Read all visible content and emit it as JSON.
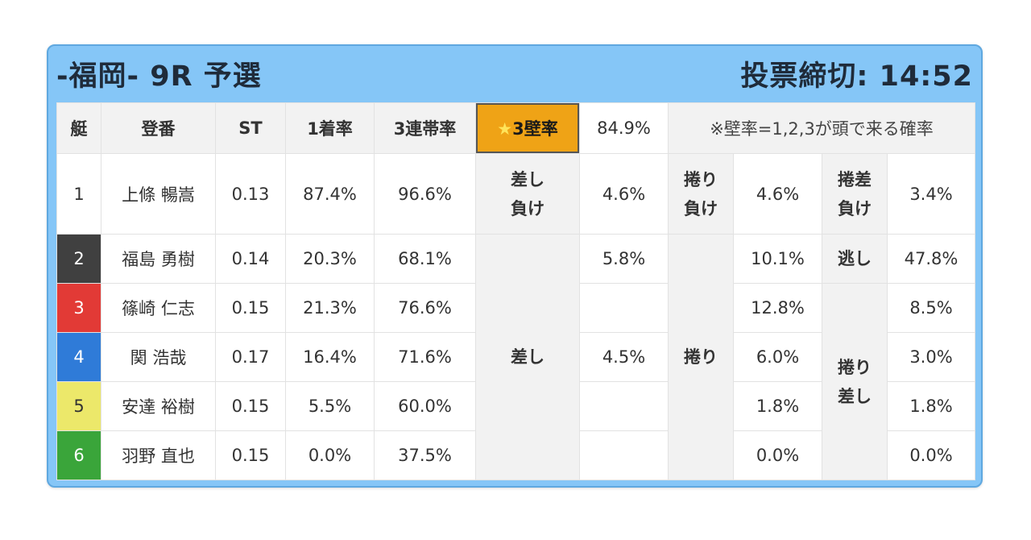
{
  "header": {
    "title": "-福岡- 9R 予選",
    "deadline": "投票締切: 14:52"
  },
  "columns": {
    "boat": "艇",
    "registration": "登番",
    "st": "ST",
    "first_rate": "1着率",
    "top3_rate": "3連帯率",
    "wall_rate_star": "★",
    "wall_rate_label": "3壁率",
    "wall_rate_value": "84.9%",
    "note": "※壁率=1,2,3が頭で来る確率"
  },
  "colors": {
    "card": "#85c6f7",
    "highlight": "#efa316",
    "boat1": "#ffffff",
    "boat2": "#404040",
    "boat3": "#e23a36",
    "boat4": "#2f7bd8",
    "boat5": "#ece86a",
    "boat6": "#3aa53a"
  },
  "rows": [
    {
      "boat": "1",
      "name": "上條 暢嵩",
      "st": "0.13",
      "first": "87.4%",
      "top3": "96.6%"
    },
    {
      "boat": "2",
      "name": "福島 勇樹",
      "st": "0.14",
      "first": "20.3%",
      "top3": "68.1%"
    },
    {
      "boat": "3",
      "name": "篠崎 仁志",
      "st": "0.15",
      "first": "21.3%",
      "top3": "76.6%"
    },
    {
      "boat": "4",
      "name": "関 浩哉",
      "st": "0.17",
      "first": "16.4%",
      "top3": "71.6%"
    },
    {
      "boat": "5",
      "name": "安達 裕樹",
      "st": "0.15",
      "first": "5.5%",
      "top3": "60.0%"
    },
    {
      "boat": "6",
      "name": "羽野 直也",
      "st": "0.15",
      "first": "0.0%",
      "top3": "37.5%"
    }
  ],
  "patterns": {
    "sashi_make": {
      "line1": "差し",
      "line2": "負け",
      "value": "4.6%"
    },
    "makuri_make": {
      "line1": "捲り",
      "line2": "負け",
      "value": "4.6%"
    },
    "makurisashi_make": {
      "line1": "捲差",
      "line2": "負け",
      "value": "3.4%"
    },
    "sashi": {
      "label": "差し",
      "v2": "5.8%",
      "v4": "4.5%"
    },
    "makuri": {
      "label": "捲り",
      "v2": "10.1%",
      "v3": "12.8%",
      "v4": "6.0%",
      "v5": "1.8%",
      "v6": "0.0%"
    },
    "nige": {
      "label": "逃し",
      "value": "47.8%"
    },
    "makurisashi": {
      "line1": "捲り",
      "line2": "差し",
      "v3": "8.5%",
      "v4": "3.0%",
      "v5": "1.8%",
      "v6": "0.0%"
    }
  }
}
